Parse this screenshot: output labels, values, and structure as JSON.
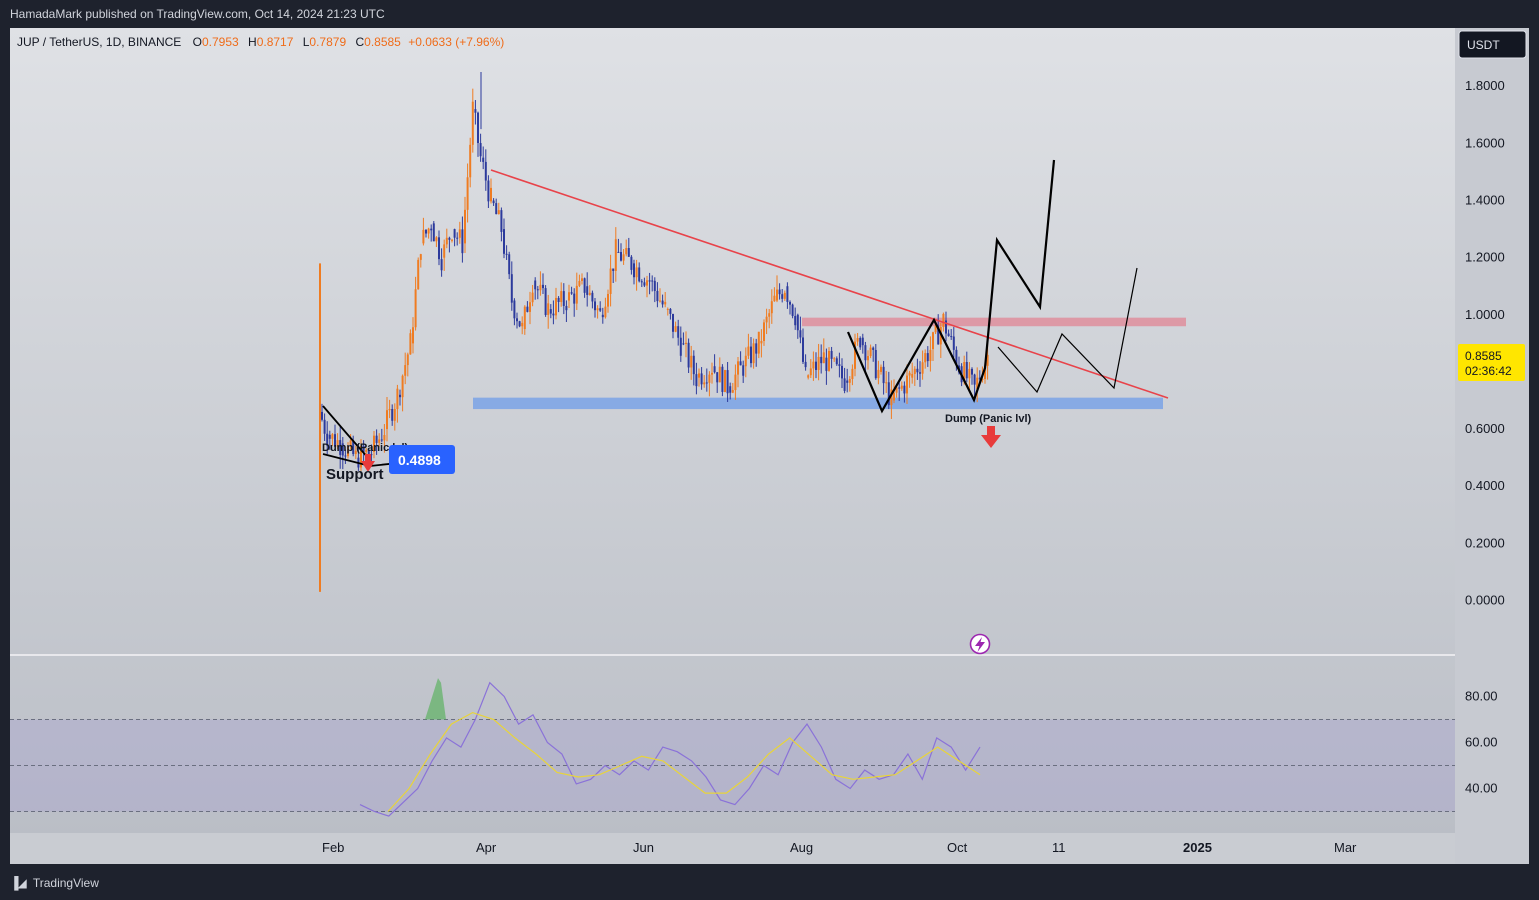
{
  "header": {
    "publisher_line": "HamadaMark published on TradingView.com, Oct 14, 2024 21:23 UTC"
  },
  "footer": {
    "brand": "TradingView",
    "logo_icon": "tradingview-logo-icon"
  },
  "symbol_bar": {
    "symbol": "JUP / TetherUS, 1D, BINANCE",
    "o_label": "O",
    "o": "0.7953",
    "h_label": "H",
    "h": "0.8717",
    "l_label": "L",
    "l": "0.7879",
    "c_label": "C",
    "c": "0.8585",
    "change": "+0.0633 (+7.96%)"
  },
  "currency_button": "USDT",
  "price_tag": {
    "price": "0.8585",
    "countdown": "02:36:42"
  },
  "colors": {
    "bg": "#b8bcc4",
    "up": "#ef7c22",
    "down": "#2c3a9c",
    "trend": "#e8434a",
    "support_zone": "#6f9ce8",
    "resistance_zone": "#e08a99",
    "rsi": "#8a72d8",
    "rsi_ma": "#e8d43a",
    "price_tag": "#ffe600"
  },
  "annotations": {
    "dump_label": "Dump (Panic lvl)",
    "dump_label_small": "Dump (Panic lvl)",
    "support_label": "Support",
    "support_badge": "0.4898",
    "dump_arrow_icon": "down-arrow-icon",
    "lightning_icon": "lightning-icon"
  },
  "chart_data": [
    {
      "type": "candlestick",
      "title": "JUP / TetherUS, 1D, BINANCE",
      "x_ticks": [
        "Feb",
        "Apr",
        "Jun",
        "Aug",
        "Oct",
        "11",
        "2025",
        "Mar"
      ],
      "y_ticks": [
        "1.8000",
        "1.6000",
        "1.4000",
        "1.2000",
        "1.0000",
        "0.6000",
        "0.4000",
        "0.2000",
        "0.0000"
      ],
      "ylim": [
        -0.1,
        1.9
      ],
      "series_close_path": [
        [
          "2024-01-31",
          0.66
        ],
        [
          "2024-02-03",
          0.58
        ],
        [
          "2024-02-08",
          0.55
        ],
        [
          "2024-02-14",
          0.5
        ],
        [
          "2024-02-20",
          0.52
        ],
        [
          "2024-02-25",
          0.6
        ],
        [
          "2024-03-01",
          0.72
        ],
        [
          "2024-03-06",
          0.9
        ],
        [
          "2024-03-10",
          1.25
        ],
        [
          "2024-03-14",
          1.32
        ],
        [
          "2024-03-18",
          1.2
        ],
        [
          "2024-03-22",
          1.3
        ],
        [
          "2024-03-26",
          1.25
        ],
        [
          "2024-03-30",
          1.72
        ],
        [
          "2024-04-02",
          1.55
        ],
        [
          "2024-04-06",
          1.4
        ],
        [
          "2024-04-10",
          1.3
        ],
        [
          "2024-04-14",
          1.05
        ],
        [
          "2024-04-18",
          0.95
        ],
        [
          "2024-04-22",
          1.12
        ],
        [
          "2024-04-28",
          1.02
        ],
        [
          "2024-05-05",
          1.05
        ],
        [
          "2024-05-12",
          1.1
        ],
        [
          "2024-05-18",
          1.0
        ],
        [
          "2024-05-24",
          1.22
        ],
        [
          "2024-05-30",
          1.18
        ],
        [
          "2024-06-06",
          1.12
        ],
        [
          "2024-06-12",
          1.02
        ],
        [
          "2024-06-18",
          0.9
        ],
        [
          "2024-06-24",
          0.78
        ],
        [
          "2024-06-30",
          0.82
        ],
        [
          "2024-07-06",
          0.75
        ],
        [
          "2024-07-12",
          0.82
        ],
        [
          "2024-07-18",
          0.9
        ],
        [
          "2024-07-24",
          1.05
        ],
        [
          "2024-07-28",
          1.1
        ],
        [
          "2024-08-01",
          1.0
        ],
        [
          "2024-08-05",
          0.78
        ],
        [
          "2024-08-12",
          0.85
        ],
        [
          "2024-08-20",
          0.77
        ],
        [
          "2024-08-26",
          0.92
        ],
        [
          "2024-09-02",
          0.8
        ],
        [
          "2024-09-07",
          0.7
        ],
        [
          "2024-09-14",
          0.78
        ],
        [
          "2024-09-22",
          0.88
        ],
        [
          "2024-09-27",
          0.98
        ],
        [
          "2024-10-03",
          0.82
        ],
        [
          "2024-10-09",
          0.74
        ],
        [
          "2024-10-14",
          0.8585
        ]
      ],
      "support_zone": [
        0.67,
        0.71
      ],
      "resistance_zone": [
        0.96,
        0.99
      ],
      "descending_trendline": [
        [
          "2024-04-02",
          1.51
        ],
        [
          "2024-11-26",
          0.7
        ]
      ]
    },
    {
      "type": "line",
      "title": "RSI",
      "y_ticks": [
        "80.00",
        "60.00",
        "40.00"
      ],
      "bands": [
        70,
        50,
        30
      ],
      "ylim": [
        20,
        90
      ],
      "series": [
        {
          "name": "RSI",
          "values": [
            33,
            30,
            28,
            34,
            40,
            52,
            62,
            58,
            70,
            86,
            80,
            68,
            72,
            60,
            55,
            42,
            44,
            50,
            46,
            52,
            48,
            58,
            56,
            52,
            45,
            35,
            33,
            40,
            50,
            46,
            60,
            68,
            58,
            44,
            40,
            48,
            44,
            46,
            55,
            44,
            62,
            58,
            48,
            58
          ]
        },
        {
          "name": "RSI MA",
          "values": [
            30,
            40,
            55,
            68,
            73,
            70,
            62,
            55,
            47,
            45,
            46,
            50,
            54,
            52,
            45,
            38,
            38,
            45,
            55,
            62,
            54,
            46,
            44,
            45,
            46,
            52,
            58,
            52,
            46
          ]
        }
      ]
    }
  ]
}
